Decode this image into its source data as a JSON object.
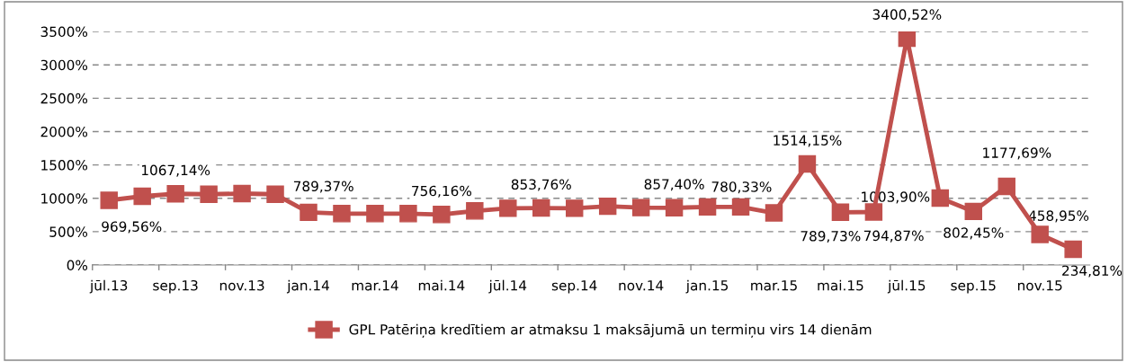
{
  "chart_data": {
    "type": "line",
    "categories": [
      "jūl.13",
      null,
      "sep.13",
      null,
      "nov.13",
      null,
      "jan.14",
      null,
      "mar.14",
      null,
      "mai.14",
      null,
      "jūl.14",
      null,
      "sep.14",
      null,
      "nov.14",
      null,
      "jan.15",
      null,
      "mar.15",
      null,
      "mai.15",
      null,
      "jūl.15",
      null,
      "sep.15",
      null,
      "nov.15",
      null
    ],
    "series": [
      {
        "name": "GPL Patēriņa kredītiem ar atmaksu 1 maksājumā un termiņu virs 14 dienām",
        "color": "#c0504d",
        "values": [
          969.56,
          1030,
          1067.14,
          1060,
          1070,
          1060,
          789.37,
          770,
          770,
          770,
          756.16,
          810,
          850,
          853.76,
          850,
          880,
          860,
          857.4,
          870,
          870,
          780.33,
          1514.15,
          789.73,
          794.87,
          3400.52,
          1003.9,
          802.45,
          1177.69,
          458.95,
          234.81
        ],
        "value_labels": [
          "969,56%",
          null,
          "1067,14%",
          null,
          null,
          null,
          "789,37%",
          null,
          null,
          null,
          "756,16%",
          null,
          null,
          "853,76%",
          null,
          null,
          null,
          "857,40%",
          null,
          null,
          "780,33%",
          "1514,15%",
          "789,73%",
          "794,87%",
          "3400,52%",
          "1003,90%",
          "802,45%",
          "1177,69%",
          "458,95%",
          "234,81%"
        ]
      }
    ],
    "ylim": [
      0,
      3500
    ],
    "yticks": [
      {
        "value": 0,
        "label": "0%"
      },
      {
        "value": 500,
        "label": "500%"
      },
      {
        "value": 1000,
        "label": "1000%"
      },
      {
        "value": 1500,
        "label": "1500%"
      },
      {
        "value": 2000,
        "label": "2000%"
      },
      {
        "value": 2500,
        "label": "2500%"
      },
      {
        "value": 3000,
        "label": "3000%"
      },
      {
        "value": 3500,
        "label": "3500%"
      }
    ],
    "grid": "y",
    "legend": "bottom",
    "marker": "square",
    "line_style": "solid"
  }
}
